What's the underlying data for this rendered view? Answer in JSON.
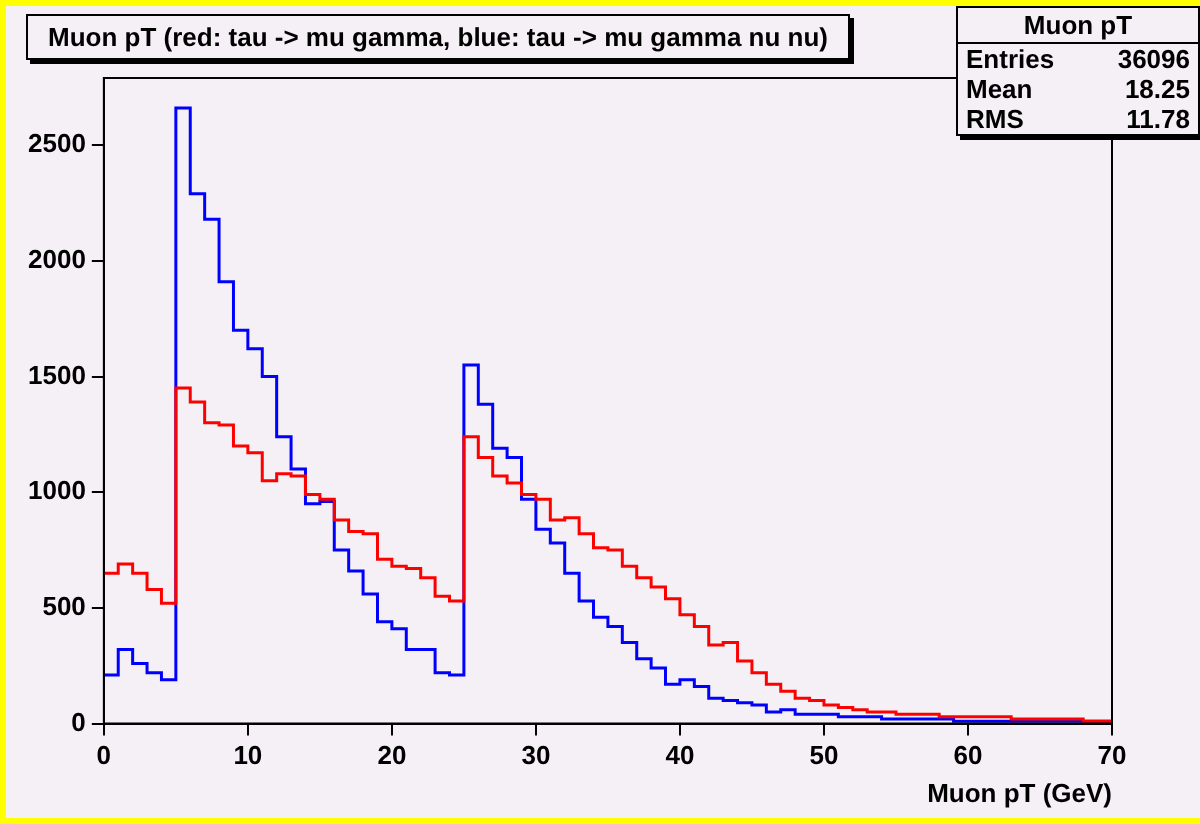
{
  "chart_data": {
    "type": "histogram",
    "title": "Muon pT (red: tau -> mu gamma, blue: tau -> mu gamma nu nu)",
    "xlabel": "Muon pT (GeV)",
    "bins": [
      0,
      1,
      2,
      3,
      4,
      5,
      6,
      7,
      8,
      9,
      10,
      11,
      12,
      13,
      14,
      15,
      16,
      17,
      18,
      19,
      20,
      21,
      22,
      23,
      24,
      25,
      26,
      27,
      28,
      29,
      30,
      31,
      32,
      33,
      34,
      35,
      36,
      37,
      38,
      39,
      40,
      41,
      42,
      43,
      44,
      45,
      46,
      47,
      48,
      49,
      50,
      51,
      52,
      53,
      54,
      55,
      56,
      57,
      58,
      59,
      60,
      61,
      62,
      63,
      64,
      65,
      66,
      67,
      68,
      69,
      70
    ],
    "series": [
      {
        "color": "#ff0000",
        "values": [
          650,
          690,
          650,
          580,
          520,
          1450,
          1390,
          1300,
          1290,
          1200,
          1170,
          1050,
          1080,
          1070,
          990,
          970,
          880,
          830,
          820,
          710,
          680,
          670,
          630,
          550,
          530,
          1240,
          1150,
          1070,
          1040,
          990,
          970,
          880,
          890,
          820,
          760,
          750,
          680,
          630,
          590,
          540,
          470,
          420,
          340,
          350,
          270,
          220,
          170,
          140,
          110,
          100,
          80,
          70,
          60,
          50,
          50,
          40,
          40,
          40,
          30,
          30,
          30,
          30,
          30,
          20,
          20,
          20,
          20,
          20,
          10,
          10
        ]
      },
      {
        "color": "#0000ff",
        "values": [
          210,
          320,
          260,
          220,
          190,
          2660,
          2290,
          2180,
          1910,
          1700,
          1620,
          1500,
          1240,
          1100,
          950,
          960,
          750,
          660,
          560,
          440,
          410,
          320,
          320,
          220,
          210,
          1550,
          1380,
          1190,
          1150,
          970,
          840,
          780,
          650,
          530,
          460,
          420,
          350,
          280,
          240,
          170,
          190,
          160,
          110,
          100,
          90,
          80,
          50,
          60,
          40,
          40,
          40,
          30,
          30,
          30,
          20,
          20,
          20,
          20,
          20,
          10,
          10,
          10,
          10,
          10,
          10,
          10,
          10,
          10,
          10,
          10
        ]
      }
    ],
    "xlim": [
      0,
      70
    ],
    "xticks": [
      0,
      10,
      20,
      30,
      40,
      50,
      60,
      70
    ],
    "ylim": [
      0,
      2790
    ],
    "yticks": [
      0,
      500,
      1000,
      1500,
      2000,
      2500
    ],
    "annotations": [
      "Muon pT",
      "Entries",
      "36096",
      "Mean",
      "18.25",
      "RMS",
      "11.78"
    ],
    "grid": false,
    "legend": false
  }
}
